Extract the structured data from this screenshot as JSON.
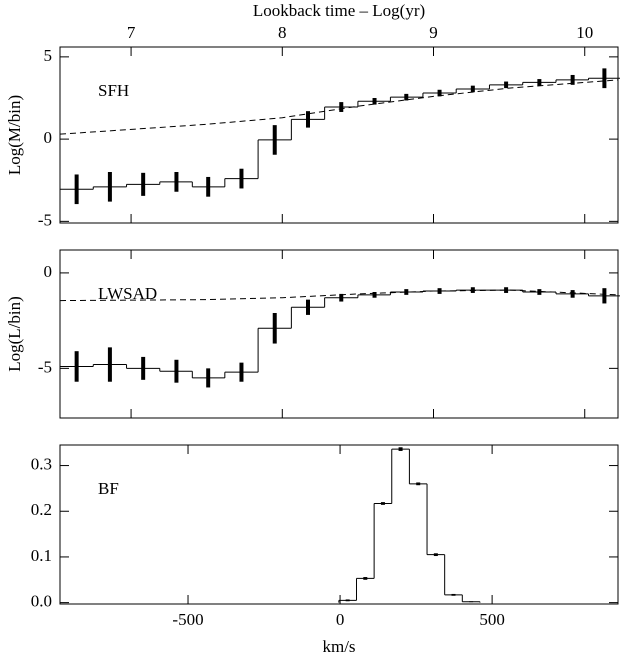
{
  "chart_data": [
    {
      "type": "step",
      "annotation": "SFH",
      "xlabel": "Lookback time – Log(yr)",
      "ylabel": "Log(M/bin)",
      "xaxis": "top",
      "xlim": [
        6.53,
        10.22
      ],
      "xticks": [
        7,
        8,
        9,
        10
      ],
      "ylim": [
        -5.1,
        5.6
      ],
      "yticks": [
        -5,
        0,
        5
      ],
      "series": [
        {
          "style": "step",
          "color": "#000000",
          "x": [
            6.64,
            6.86,
            7.08,
            7.3,
            7.51,
            7.73,
            7.95,
            8.17,
            8.39,
            8.61,
            8.82,
            9.04,
            9.26,
            9.48,
            9.7,
            9.92,
            10.13
          ],
          "values": [
            -3.05,
            -2.9,
            -2.75,
            -2.6,
            -2.9,
            -2.4,
            -0.05,
            1.2,
            1.95,
            2.3,
            2.55,
            2.8,
            3.05,
            3.3,
            3.45,
            3.6,
            3.7
          ],
          "errors": [
            0.9,
            0.9,
            0.7,
            0.6,
            0.6,
            0.6,
            0.9,
            0.5,
            0.3,
            0.2,
            0.2,
            0.2,
            0.2,
            0.2,
            0.2,
            0.3,
            0.6
          ]
        },
        {
          "style": "dashed",
          "color": "#000000",
          "x": [
            6.53,
            7.5,
            8.0,
            8.5,
            9.0,
            9.5,
            10.22
          ],
          "values": [
            0.3,
            0.9,
            1.3,
            2.0,
            2.6,
            3.1,
            3.6
          ]
        }
      ]
    },
    {
      "type": "step",
      "annotation": "LWSAD",
      "ylabel": "Log(L/bin)",
      "xlim": [
        6.53,
        10.22
      ],
      "xticks": [
        7,
        8,
        9,
        10
      ],
      "ylim": [
        -7.6,
        1.2
      ],
      "yticks": [
        -5,
        0
      ],
      "series": [
        {
          "style": "step",
          "color": "#000000",
          "x": [
            6.64,
            6.86,
            7.08,
            7.3,
            7.51,
            7.73,
            7.95,
            8.17,
            8.39,
            8.61,
            8.82,
            9.04,
            9.26,
            9.48,
            9.7,
            9.92,
            10.13
          ],
          "values": [
            -4.9,
            -4.8,
            -5.0,
            -5.15,
            -5.5,
            -5.2,
            -2.9,
            -1.8,
            -1.3,
            -1.15,
            -1.0,
            -0.95,
            -0.9,
            -0.9,
            -1.0,
            -1.1,
            -1.2
          ],
          "errors": [
            0.8,
            0.9,
            0.6,
            0.6,
            0.5,
            0.5,
            0.8,
            0.4,
            0.2,
            0.15,
            0.15,
            0.15,
            0.15,
            0.15,
            0.15,
            0.2,
            0.4
          ]
        },
        {
          "style": "dashed",
          "color": "#000000",
          "x": [
            6.53,
            7.5,
            8.0,
            8.5,
            9.0,
            9.5,
            10.22
          ],
          "values": [
            -1.45,
            -1.4,
            -1.3,
            -1.1,
            -0.95,
            -0.9,
            -1.15
          ]
        }
      ]
    },
    {
      "type": "step",
      "annotation": "BF",
      "xlabel": "km/s",
      "xaxis": "bottom",
      "xlim": [
        -921,
        914
      ],
      "xticks": [
        -500,
        0,
        500
      ],
      "ylim": [
        -0.003,
        0.345
      ],
      "yticks": [
        {
          "value": 0,
          "label": "0.0"
        },
        0.1,
        0.2,
        0.3
      ],
      "series": [
        {
          "style": "step",
          "color": "#000000",
          "baseline": 0,
          "x": [
            25,
            83,
            141,
            199,
            257,
            315,
            373,
            431
          ],
          "values": [
            0.005,
            0.053,
            0.217,
            0.336,
            0.26,
            0.105,
            0.017,
            0.002
          ],
          "errors": [
            0.002,
            0.003,
            0.003,
            0.004,
            0.003,
            0.003,
            0.002,
            0.001
          ]
        }
      ]
    }
  ]
}
